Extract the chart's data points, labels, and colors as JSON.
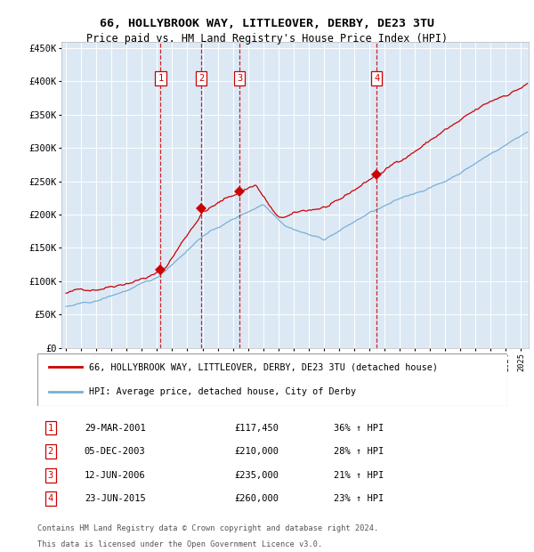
{
  "title1": "66, HOLLYBROOK WAY, LITTLEOVER, DERBY, DE23 3TU",
  "title2": "Price paid vs. HM Land Registry's House Price Index (HPI)",
  "yticks": [
    0,
    50000,
    100000,
    150000,
    200000,
    250000,
    300000,
    350000,
    400000,
    450000
  ],
  "ytick_labels": [
    "£0",
    "£50K",
    "£100K",
    "£150K",
    "£200K",
    "£250K",
    "£300K",
    "£350K",
    "£400K",
    "£450K"
  ],
  "xlim_start": 1994.7,
  "xlim_end": 2025.5,
  "ylim_min": 0,
  "ylim_max": 460000,
  "bg_color": "#dce9f5",
  "grid_color": "#ffffff",
  "red_line_color": "#cc0000",
  "blue_line_color": "#7aafd4",
  "vline_color": "#cc0000",
  "transactions": [
    {
      "num": 1,
      "date_str": "29-MAR-2001",
      "year": 2001.24,
      "price": 117450,
      "pct": "36%",
      "label": "29-MAR-2001",
      "price_disp": "£117,450"
    },
    {
      "num": 2,
      "date_str": "05-DEC-2003",
      "year": 2003.92,
      "price": 210000,
      "pct": "28%",
      "label": "05-DEC-2003",
      "price_disp": "£210,000"
    },
    {
      "num": 3,
      "date_str": "12-JUN-2006",
      "year": 2006.45,
      "price": 235000,
      "pct": "21%",
      "label": "12-JUN-2006",
      "price_disp": "£235,000"
    },
    {
      "num": 4,
      "date_str": "23-JUN-2015",
      "year": 2015.48,
      "price": 260000,
      "pct": "23%",
      "label": "23-JUN-2015",
      "price_disp": "£260,000"
    }
  ],
  "legend1": "66, HOLLYBROOK WAY, LITTLEOVER, DERBY, DE23 3TU (detached house)",
  "legend2": "HPI: Average price, detached house, City of Derby",
  "footer1": "Contains HM Land Registry data © Crown copyright and database right 2024.",
  "footer2": "This data is licensed under the Open Government Licence v3.0."
}
